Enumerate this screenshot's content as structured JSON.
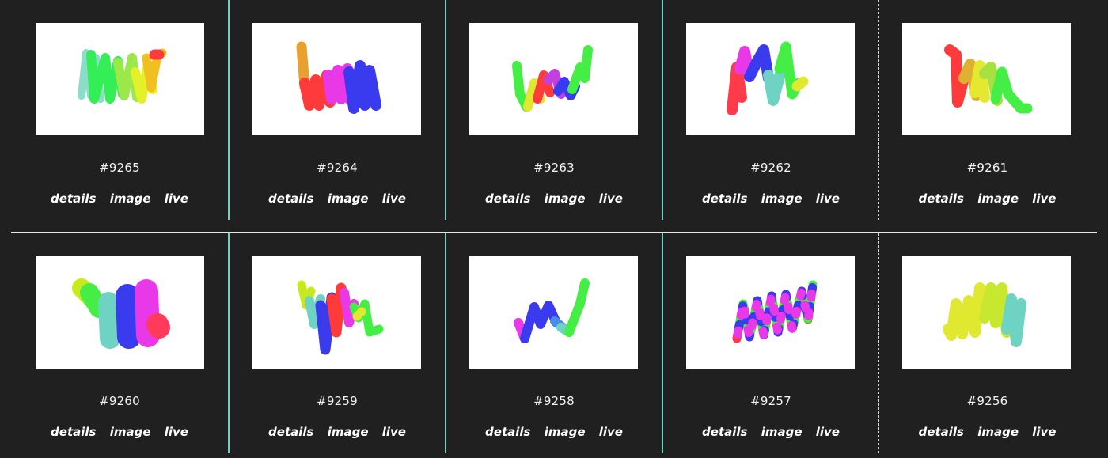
{
  "tokens": [
    {
      "id": "#9265",
      "links": {
        "details": "details",
        "image": "image",
        "live": "live"
      }
    },
    {
      "id": "#9264",
      "links": {
        "details": "details",
        "image": "image",
        "live": "live"
      }
    },
    {
      "id": "#9263",
      "links": {
        "details": "details",
        "image": "image",
        "live": "live"
      }
    },
    {
      "id": "#9262",
      "links": {
        "details": "details",
        "image": "image",
        "live": "live"
      }
    },
    {
      "id": "#9261",
      "links": {
        "details": "details",
        "image": "image",
        "live": "live"
      }
    },
    {
      "id": "#9260",
      "links": {
        "details": "details",
        "image": "image",
        "live": "live"
      }
    },
    {
      "id": "#9259",
      "links": {
        "details": "details",
        "image": "image",
        "live": "live"
      }
    },
    {
      "id": "#9258",
      "links": {
        "details": "details",
        "image": "image",
        "live": "live"
      }
    },
    {
      "id": "#9257",
      "links": {
        "details": "details",
        "image": "image",
        "live": "live"
      }
    },
    {
      "id": "#9256",
      "links": {
        "details": "details",
        "image": "image",
        "live": "live"
      }
    }
  ],
  "colors": {
    "background": "#202020",
    "divider": "#6ed3c3",
    "row_divider": "#e6e6e6",
    "text": "#ffffff"
  }
}
